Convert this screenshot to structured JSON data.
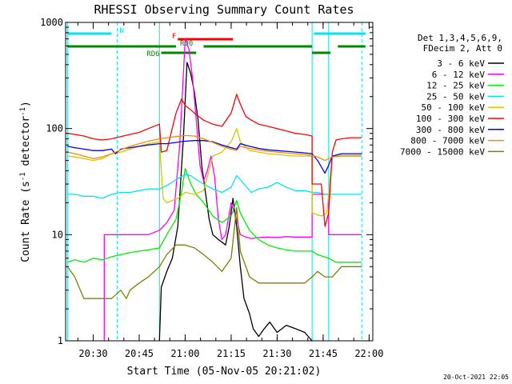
{
  "chart_data": {
    "type": "line",
    "title": "RHESSI Observing Summary Count Rates",
    "xlabel": "Start Time (05-Nov-05 20:21:02)",
    "ylabel_main": "Count Rate (s",
    "ylabel_sup1": "-1",
    "ylabel_mid": " detector",
    "ylabel_sup2": "-1",
    "ylabel_end": ")",
    "timestamp": "20-Oct-2021 22:05",
    "y_scale": "log",
    "ylim": [
      1,
      1000
    ],
    "xlim_minutes": [
      20.35,
      22.02
    ],
    "y_ticks": [
      {
        "value": 1,
        "label": "1"
      },
      {
        "value": 10,
        "label": "10"
      },
      {
        "value": 100,
        "label": "100"
      },
      {
        "value": 1000,
        "label": "1000"
      }
    ],
    "x_ticks": [
      {
        "t": 20.5,
        "label": "20:30"
      },
      {
        "t": 20.75,
        "label": "20:45"
      },
      {
        "t": 21.0,
        "label": "21:00"
      },
      {
        "t": 21.25,
        "label": "21:15"
      },
      {
        "t": 21.5,
        "label": "21:30"
      },
      {
        "t": 21.75,
        "label": "21:45"
      },
      {
        "t": 22.0,
        "label": "22:00"
      }
    ],
    "legend_header": [
      "Det 1,3,4,5,6,9,",
      "FDecim 2, Att 0"
    ],
    "legend_placement": "right",
    "flags": [
      {
        "label": "N",
        "color": "#00e5ee",
        "segments": [
          [
            20.36,
            20.6
          ],
          [
            21.7,
            21.98
          ]
        ],
        "level": 1
      },
      {
        "label": "F",
        "color": "#ff0000",
        "segments": [
          [
            20.96,
            21.26
          ]
        ],
        "level": 2
      },
      {
        "label": "RD0",
        "color": "#008800",
        "segments": [
          [
            20.36,
            20.95
          ],
          [
            21.1,
            21.69
          ],
          [
            21.83,
            21.98
          ]
        ],
        "level": 3
      },
      {
        "label": "RD6",
        "color": "#008800",
        "segments": [
          [
            20.87,
            21.06
          ],
          [
            21.69,
            21.79
          ]
        ],
        "level": 4
      }
    ],
    "vlines": [
      {
        "t": 20.36,
        "color": "#00e5ee",
        "dashed": false
      },
      {
        "t": 20.63,
        "color": "#00e5ee",
        "dashed": true
      },
      {
        "t": 20.86,
        "color": "#00e5ee",
        "dashed": false
      },
      {
        "t": 21.69,
        "color": "#00e5ee",
        "dashed": false
      },
      {
        "t": 21.78,
        "color": "#00e5ee",
        "dashed": false
      },
      {
        "t": 21.96,
        "color": "#00e5ee",
        "dashed": true
      }
    ],
    "series": [
      {
        "name": "3 - 6 keV",
        "color": "#000000",
        "x": [
          20.86,
          20.87,
          20.9,
          20.93,
          20.96,
          20.99,
          21.01,
          21.03,
          21.05,
          21.07,
          21.09,
          21.11,
          21.13,
          21.15,
          21.18,
          21.2,
          21.22,
          21.24,
          21.26,
          21.28,
          21.3,
          21.32,
          21.35,
          21.37,
          21.4,
          21.43,
          21.46,
          21.5,
          21.55,
          21.6,
          21.65,
          21.69
        ],
        "y": [
          1,
          3.2,
          4.5,
          6,
          12,
          80,
          420,
          330,
          220,
          120,
          45,
          25,
          14,
          10,
          9,
          8.5,
          8,
          12,
          22,
          12,
          5,
          2.5,
          1.8,
          1.3,
          1.1,
          1.3,
          1.5,
          1.2,
          1.4,
          1.3,
          1.2,
          1
        ]
      },
      {
        "name": "6 - 12 keV",
        "color": "#ff00ff",
        "x": [
          20.56,
          20.56,
          20.6,
          20.65,
          20.7,
          20.8,
          20.86,
          20.9,
          20.94,
          20.97,
          21.0,
          21.02,
          21.04,
          21.06,
          21.08,
          21.1,
          21.12,
          21.14,
          21.16,
          21.18,
          21.2,
          21.22,
          21.25,
          21.28,
          21.3,
          21.33,
          21.36,
          21.4,
          21.45,
          21.5,
          21.55,
          21.6,
          21.65,
          21.69,
          21.69,
          21.72,
          21.78,
          21.78,
          21.85,
          21.9,
          21.96
        ],
        "y": [
          1,
          10,
          10,
          10,
          10,
          10,
          11,
          13,
          17,
          70,
          700,
          560,
          300,
          120,
          45,
          32,
          40,
          55,
          35,
          14,
          9,
          10,
          20,
          14,
          10,
          9.5,
          9.2,
          9.4,
          9.5,
          9.4,
          9.6,
          9.5,
          9.5,
          9.5,
          24,
          24,
          24,
          10,
          10,
          10,
          10
        ]
      },
      {
        "name": "12 - 25 keV",
        "color": "#00ee00",
        "x": [
          20.36,
          20.4,
          20.45,
          20.5,
          20.55,
          20.6,
          20.65,
          20.7,
          20.75,
          20.8,
          20.86,
          20.9,
          20.95,
          20.98,
          21.0,
          21.03,
          21.06,
          21.1,
          21.15,
          21.2,
          21.25,
          21.28,
          21.3,
          21.35,
          21.4,
          21.45,
          21.5,
          21.55,
          21.6,
          21.65,
          21.69,
          21.72,
          21.78,
          21.82,
          21.9,
          21.96
        ],
        "y": [
          5.5,
          5.8,
          5.5,
          6,
          5.8,
          6.2,
          6.5,
          6.8,
          7,
          7.2,
          7.5,
          10,
          14,
          25,
          42,
          30,
          24,
          20,
          15,
          13,
          15,
          21,
          16,
          11,
          9,
          8,
          7.5,
          7.2,
          7,
          7,
          7,
          6.5,
          6,
          5.5,
          5.5,
          5.5
        ]
      },
      {
        "name": "25 - 50 keV",
        "color": "#00e5ee",
        "x": [
          20.36,
          20.4,
          20.45,
          20.5,
          20.55,
          20.6,
          20.65,
          20.7,
          20.75,
          20.8,
          20.86,
          20.9,
          20.95,
          21.0,
          21.03,
          21.06,
          21.1,
          21.15,
          21.2,
          21.25,
          21.28,
          21.32,
          21.36,
          21.4,
          21.45,
          21.5,
          21.55,
          21.6,
          21.65,
          21.69,
          21.72,
          21.76,
          21.8,
          21.85,
          21.9,
          21.96
        ],
        "y": [
          24,
          24,
          23,
          23,
          22,
          24,
          25,
          25,
          26,
          27,
          27,
          29,
          33,
          37,
          36,
          33,
          30,
          27,
          25,
          28,
          36,
          30,
          25,
          27,
          28,
          31,
          28,
          26,
          26,
          25,
          25,
          24,
          24,
          24,
          24,
          24
        ]
      },
      {
        "name": "50 - 100 keV",
        "color": "#cccc00",
        "x": [
          20.36,
          20.4,
          20.45,
          20.5,
          20.55,
          20.6,
          20.65,
          20.7,
          20.75,
          20.8,
          20.86,
          20.88,
          20.9,
          20.93,
          20.96,
          21.0,
          21.05,
          21.1,
          21.15,
          21.2,
          21.25,
          21.28,
          21.3,
          21.35,
          21.4,
          21.45,
          21.5,
          21.55,
          21.6,
          21.65,
          21.69,
          21.69,
          21.74,
          21.77,
          21.8,
          21.85,
          21.9,
          21.96
        ],
        "y": [
          55,
          54,
          52,
          50,
          52,
          58,
          60,
          64,
          68,
          72,
          75,
          22,
          20,
          21,
          22,
          25,
          24,
          26,
          55,
          60,
          75,
          100,
          75,
          62,
          60,
          58,
          57,
          56,
          55,
          55,
          55,
          16,
          15,
          16,
          55,
          56,
          56,
          56
        ]
      },
      {
        "name": "100 - 300 keV",
        "color": "#ff0000",
        "x": [
          20.36,
          20.4,
          20.45,
          20.5,
          20.55,
          20.6,
          20.65,
          20.7,
          20.75,
          20.8,
          20.86,
          20.87,
          20.9,
          20.95,
          20.98,
          21.0,
          21.03,
          21.06,
          21.1,
          21.15,
          21.2,
          21.25,
          21.28,
          21.3,
          21.33,
          21.36,
          21.4,
          21.45,
          21.5,
          21.55,
          21.6,
          21.65,
          21.69,
          21.69,
          21.74,
          21.76,
          21.78,
          21.8,
          21.82,
          21.85,
          21.9,
          21.96
        ],
        "y": [
          90,
          88,
          85,
          80,
          78,
          80,
          84,
          88,
          92,
          100,
          110,
          60,
          62,
          140,
          190,
          165,
          150,
          135,
          120,
          110,
          105,
          140,
          210,
          170,
          130,
          120,
          110,
          105,
          100,
          95,
          90,
          88,
          85,
          30,
          30,
          12,
          16,
          60,
          78,
          80,
          82,
          82
        ]
      },
      {
        "name": "300 - 800 keV",
        "color": "#0000ee",
        "x": [
          20.36,
          20.4,
          20.45,
          20.5,
          20.55,
          20.6,
          20.62,
          20.65,
          20.7,
          20.75,
          20.8,
          20.86,
          20.9,
          20.95,
          21.0,
          21.05,
          21.1,
          21.15,
          21.2,
          21.25,
          21.28,
          21.3,
          21.35,
          21.4,
          21.45,
          21.5,
          21.55,
          21.6,
          21.65,
          21.69,
          21.72,
          21.76,
          21.78,
          21.8,
          21.85,
          21.9,
          21.96
        ],
        "y": [
          68,
          66,
          64,
          62,
          62,
          64,
          58,
          64,
          66,
          68,
          70,
          72,
          72,
          74,
          76,
          77,
          77,
          75,
          70,
          66,
          64,
          72,
          68,
          65,
          63,
          62,
          61,
          60,
          59,
          58,
          50,
          38,
          45,
          55,
          58,
          58,
          58
        ]
      },
      {
        "name": "800 - 7000 keV",
        "color": "#ff8800",
        "x": [
          20.36,
          20.4,
          20.45,
          20.5,
          20.55,
          20.6,
          20.65,
          20.7,
          20.75,
          20.8,
          20.86,
          20.9,
          20.95,
          21.0,
          21.05,
          21.1,
          21.15,
          21.2,
          21.25,
          21.28,
          21.3,
          21.35,
          21.4,
          21.45,
          21.5,
          21.55,
          21.6,
          21.65,
          21.69,
          21.72,
          21.76,
          21.8,
          21.85,
          21.9,
          21.96
        ],
        "y": [
          60,
          58,
          55,
          52,
          54,
          58,
          63,
          68,
          72,
          76,
          80,
          82,
          84,
          86,
          85,
          80,
          74,
          68,
          64,
          62,
          68,
          65,
          63,
          61,
          60,
          59,
          58,
          57,
          56,
          54,
          50,
          54,
          55,
          55,
          55
        ]
      },
      {
        "name": "7000 - 15000 keV",
        "color": "#808000",
        "x": [
          20.36,
          20.4,
          20.43,
          20.45,
          20.5,
          20.55,
          20.6,
          20.65,
          20.68,
          20.7,
          20.75,
          20.8,
          20.86,
          20.9,
          20.95,
          21.0,
          21.05,
          21.1,
          21.15,
          21.2,
          21.25,
          21.28,
          21.3,
          21.35,
          21.4,
          21.45,
          21.5,
          21.55,
          21.6,
          21.65,
          21.69,
          21.72,
          21.76,
          21.8,
          21.85,
          21.9,
          21.96
        ],
        "y": [
          5,
          4,
          3,
          2.5,
          2.5,
          2.5,
          2.5,
          3,
          2.5,
          3,
          3.5,
          4,
          5,
          6.5,
          8,
          8,
          7.5,
          6.5,
          5.5,
          4.5,
          6,
          18,
          7,
          4,
          3.5,
          3.5,
          3.5,
          3.5,
          3.5,
          3.5,
          4,
          4.5,
          4,
          4,
          5,
          5,
          5
        ]
      }
    ]
  }
}
